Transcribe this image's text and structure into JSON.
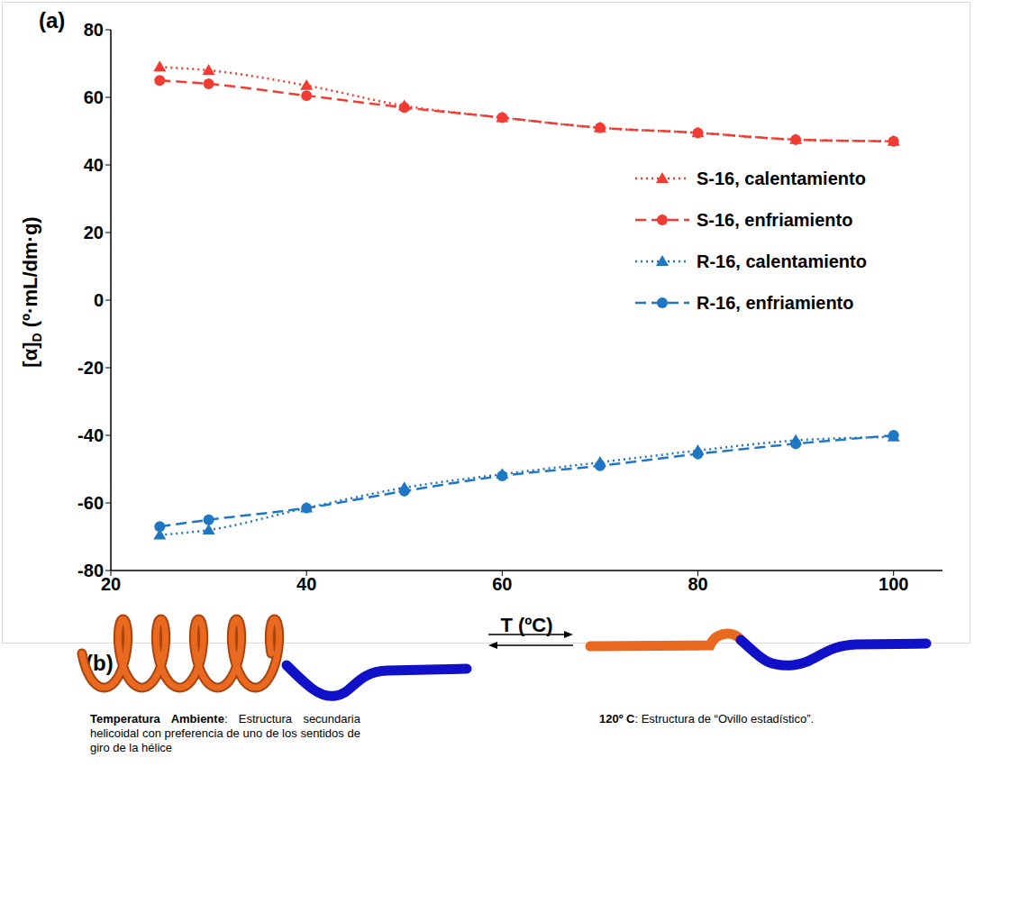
{
  "chart_data": {
    "type": "line",
    "panel_label": "(a)",
    "x_label": "T (ºC)",
    "y_label": "[α]D (º·mL/dm·g)",
    "x": [
      25,
      30,
      40,
      50,
      60,
      70,
      80,
      90,
      100
    ],
    "xlim": [
      20,
      105
    ],
    "xticks": [
      20,
      40,
      60,
      80,
      100
    ],
    "ylim": [
      -80,
      80
    ],
    "yticks": [
      -80,
      -60,
      -40,
      -20,
      0,
      20,
      40,
      60,
      80
    ],
    "grid": false,
    "legend": "right",
    "series": [
      {
        "name": "S-16, calentamiento",
        "color": "#f03c32",
        "marker": "triangle",
        "line_style": "dotted",
        "values": [
          69,
          68,
          63.5,
          57.5,
          54,
          51,
          49.5,
          47.5,
          47
        ]
      },
      {
        "name": "S-16, enfriamiento",
        "color": "#f03c32",
        "marker": "circle",
        "line_style": "dashed",
        "values": [
          65,
          64,
          60.5,
          57,
          54,
          51,
          49.5,
          47.5,
          47
        ]
      },
      {
        "name": "R-16, calentamiento",
        "color": "#1f77c4",
        "marker": "triangle",
        "line_style": "dotted",
        "values": [
          -69.5,
          -68,
          -61.5,
          -55.5,
          -51.5,
          -48,
          -44.5,
          -41.5,
          -40.5
        ]
      },
      {
        "name": "R-16, enfriamiento",
        "color": "#1f77c4",
        "marker": "circle",
        "line_style": "dashed",
        "values": [
          -67,
          -65,
          -61.5,
          -56.5,
          -52,
          -49,
          -45.5,
          -42.5,
          -40
        ]
      }
    ]
  },
  "diagram": {
    "panel_label": "(b)",
    "states": [
      {
        "title": "Temperatura Ambiente",
        "description": ": Estructura secundaria helicoidal con preferencia de uno de los sentidos de giro de la hélice"
      },
      {
        "title": "120º C",
        "description": ": Estructura de “Ovillo estadístico”."
      }
    ]
  }
}
